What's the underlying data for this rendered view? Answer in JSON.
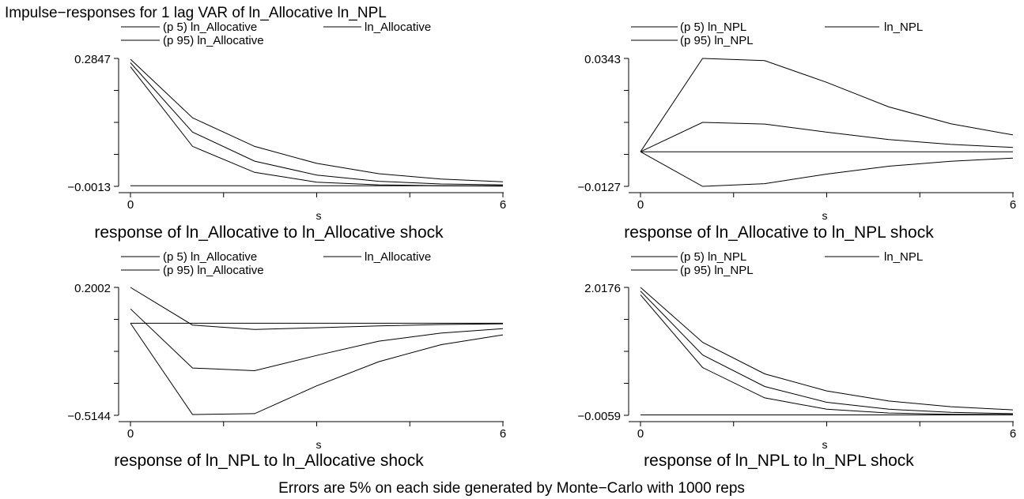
{
  "figure": {
    "title": "Impulse−responses for 1 lag VAR of ln_Allocative ln_NPL",
    "note": "Errors are 5% on each side generated by Monte−Carlo with 1000 reps"
  },
  "chart_data": [
    {
      "type": "line",
      "title": "response of ln_Allocative to ln_Allocative shock",
      "xlabel": "s",
      "x": [
        0,
        1,
        2,
        3,
        4,
        5,
        6
      ],
      "xlim": [
        0,
        6
      ],
      "ylim": [
        -0.0013,
        0.2847
      ],
      "yticks": [
        "0.2847",
        "-0.0013"
      ],
      "ytick_labels": [
        "0.2847",
        "−0.0013"
      ],
      "xtick_labels": [
        "0",
        "6"
      ],
      "legend_placement": "top",
      "legend": [
        "(p 5) ln_Allocative",
        "ln_Allocative",
        "(p 95) ln_Allocative"
      ],
      "zero_line": 0,
      "series": [
        {
          "name": "(p 5) ln_Allocative",
          "values": [
            0.266,
            0.088,
            0.03,
            0.008,
            0.002,
            0.0,
            -0.001
          ]
        },
        {
          "name": "ln_Allocative",
          "values": [
            0.275,
            0.12,
            0.055,
            0.024,
            0.01,
            0.004,
            0.002
          ]
        },
        {
          "name": "(p 95) ln_Allocative",
          "values": [
            0.283,
            0.152,
            0.088,
            0.05,
            0.027,
            0.015,
            0.009
          ]
        }
      ]
    },
    {
      "type": "line",
      "title": "response of ln_Allocative to ln_NPL shock",
      "xlabel": "s",
      "x": [
        0,
        1,
        2,
        3,
        4,
        5,
        6
      ],
      "xlim": [
        0,
        6
      ],
      "ylim": [
        -0.0127,
        0.0343
      ],
      "ytick_labels": [
        "0.0343",
        "−0.0127"
      ],
      "xtick_labels": [
        "0",
        "6"
      ],
      "legend_placement": "top",
      "legend": [
        "(p 5) ln_NPL",
        "ln_NPL",
        "(p 95) ln_NPL"
      ],
      "zero_line": 0,
      "series": [
        {
          "name": "(p 5) ln_NPL",
          "values": [
            0,
            -0.0127,
            -0.0117,
            -0.0082,
            -0.0053,
            -0.0035,
            -0.0023
          ]
        },
        {
          "name": "ln_NPL",
          "values": [
            0,
            0.0108,
            0.0102,
            0.0072,
            0.0045,
            0.0027,
            0.0016
          ]
        },
        {
          "name": "(p 95) ln_NPL",
          "values": [
            0,
            0.0343,
            0.0335,
            0.0255,
            0.0165,
            0.0103,
            0.0062
          ]
        }
      ]
    },
    {
      "type": "line",
      "title": "response of ln_NPL to ln_Allocative shock",
      "xlabel": "s",
      "x": [
        0,
        1,
        2,
        3,
        4,
        5,
        6
      ],
      "xlim": [
        0,
        6
      ],
      "ylim": [
        -0.5144,
        0.2002
      ],
      "ytick_labels": [
        "0.2002",
        "−0.5144"
      ],
      "xtick_labels": [
        "0",
        "6"
      ],
      "legend_placement": "top",
      "legend": [
        "(p 5) ln_Allocative",
        "ln_Allocative",
        "(p 95) ln_Allocative"
      ],
      "zero_line": 0,
      "series": [
        {
          "name": "(p 5) ln_Allocative",
          "values": [
            0,
            -0.51,
            -0.505,
            -0.35,
            -0.215,
            -0.12,
            -0.065
          ]
        },
        {
          "name": "ln_Allocative",
          "values": [
            0.08,
            -0.25,
            -0.265,
            -0.18,
            -0.1,
            -0.055,
            -0.03
          ]
        },
        {
          "name": "(p 95) ln_Allocative",
          "values": [
            0.2002,
            -0.01,
            -0.035,
            -0.025,
            -0.015,
            -0.007,
            -0.003
          ]
        }
      ]
    },
    {
      "type": "line",
      "title": "response of ln_NPL to ln_NPL shock",
      "xlabel": "s",
      "x": [
        0,
        1,
        2,
        3,
        4,
        5,
        6
      ],
      "xlim": [
        0,
        6
      ],
      "ylim": [
        -0.0059,
        2.0176
      ],
      "ytick_labels": [
        "2.0176",
        "−0.0059"
      ],
      "xtick_labels": [
        "0",
        "6"
      ],
      "legend_placement": "top",
      "legend": [
        "(p 5) ln_NPL",
        "ln_NPL",
        "(p 95) ln_NPL"
      ],
      "zero_line": 0,
      "series": [
        {
          "name": "(p 5) ln_NPL",
          "values": [
            1.9,
            0.75,
            0.27,
            0.09,
            0.03,
            0.01,
            0.005
          ]
        },
        {
          "name": "ln_NPL",
          "values": [
            1.96,
            0.95,
            0.45,
            0.2,
            0.09,
            0.04,
            0.02
          ]
        },
        {
          "name": "(p 95) ln_NPL",
          "values": [
            2.0176,
            1.15,
            0.65,
            0.38,
            0.22,
            0.13,
            0.08
          ]
        }
      ]
    }
  ]
}
